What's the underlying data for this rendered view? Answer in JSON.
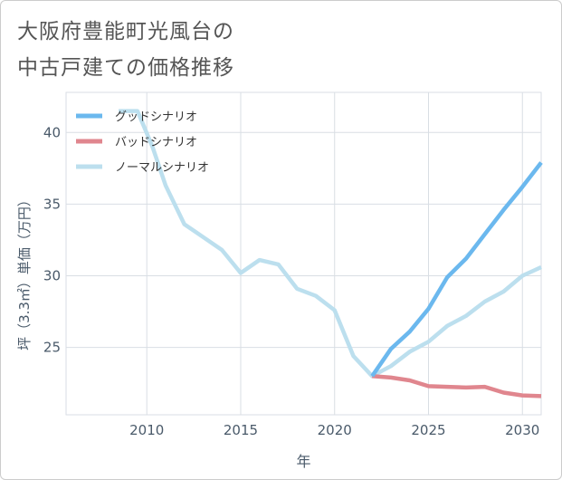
{
  "title_lines": [
    "大阪府豊能町光風台の",
    "中古戸建ての価格推移"
  ],
  "chart_data": {
    "type": "line",
    "xlabel": "年",
    "ylabel": "坪（3.3㎡）単価（万円）",
    "xlim": [
      2005.7,
      2031
    ],
    "ylim": [
      20.3,
      42.8
    ],
    "xticks": [
      2010,
      2015,
      2020,
      2025,
      2030
    ],
    "yticks": [
      25,
      30,
      35,
      40
    ],
    "grid": true,
    "legend_position": "top-left",
    "series": [
      {
        "name": "グッドシナリオ",
        "color": "#6bb8ee",
        "points": [
          [
            2022,
            23.0
          ],
          [
            2023,
            24.9
          ],
          [
            2024,
            26.1
          ],
          [
            2025,
            27.7
          ],
          [
            2026,
            29.9
          ],
          [
            2027,
            31.2
          ],
          [
            2028,
            32.9
          ],
          [
            2029,
            34.6
          ],
          [
            2030,
            36.2
          ],
          [
            2031,
            37.9
          ]
        ]
      },
      {
        "name": "バッドシナリオ",
        "color": "#e0868e",
        "points": [
          [
            2022,
            23.0
          ],
          [
            2023,
            22.9
          ],
          [
            2024,
            22.7
          ],
          [
            2025,
            22.3
          ],
          [
            2026,
            22.25
          ],
          [
            2027,
            22.2
          ],
          [
            2028,
            22.25
          ],
          [
            2029,
            21.85
          ],
          [
            2030,
            21.65
          ],
          [
            2031,
            21.6
          ]
        ]
      },
      {
        "name": "ノーマルシナリオ",
        "color": "#bcdfee",
        "points": [
          [
            2008.5,
            41.5
          ],
          [
            2009.5,
            41.5
          ],
          [
            2010.3,
            39.0
          ],
          [
            2011,
            36.3
          ],
          [
            2012,
            33.6
          ],
          [
            2013,
            32.7
          ],
          [
            2014,
            31.8
          ],
          [
            2015,
            30.2
          ],
          [
            2016,
            31.1
          ],
          [
            2017,
            30.8
          ],
          [
            2018,
            29.1
          ],
          [
            2019,
            28.6
          ],
          [
            2020,
            27.6
          ],
          [
            2021,
            24.4
          ],
          [
            2022,
            23.0
          ],
          [
            2023,
            23.7
          ],
          [
            2024,
            24.7
          ],
          [
            2025,
            25.4
          ],
          [
            2026,
            26.5
          ],
          [
            2027,
            27.2
          ],
          [
            2028,
            28.2
          ],
          [
            2029,
            28.9
          ],
          [
            2030,
            30.0
          ],
          [
            2031,
            30.6
          ]
        ]
      }
    ]
  }
}
